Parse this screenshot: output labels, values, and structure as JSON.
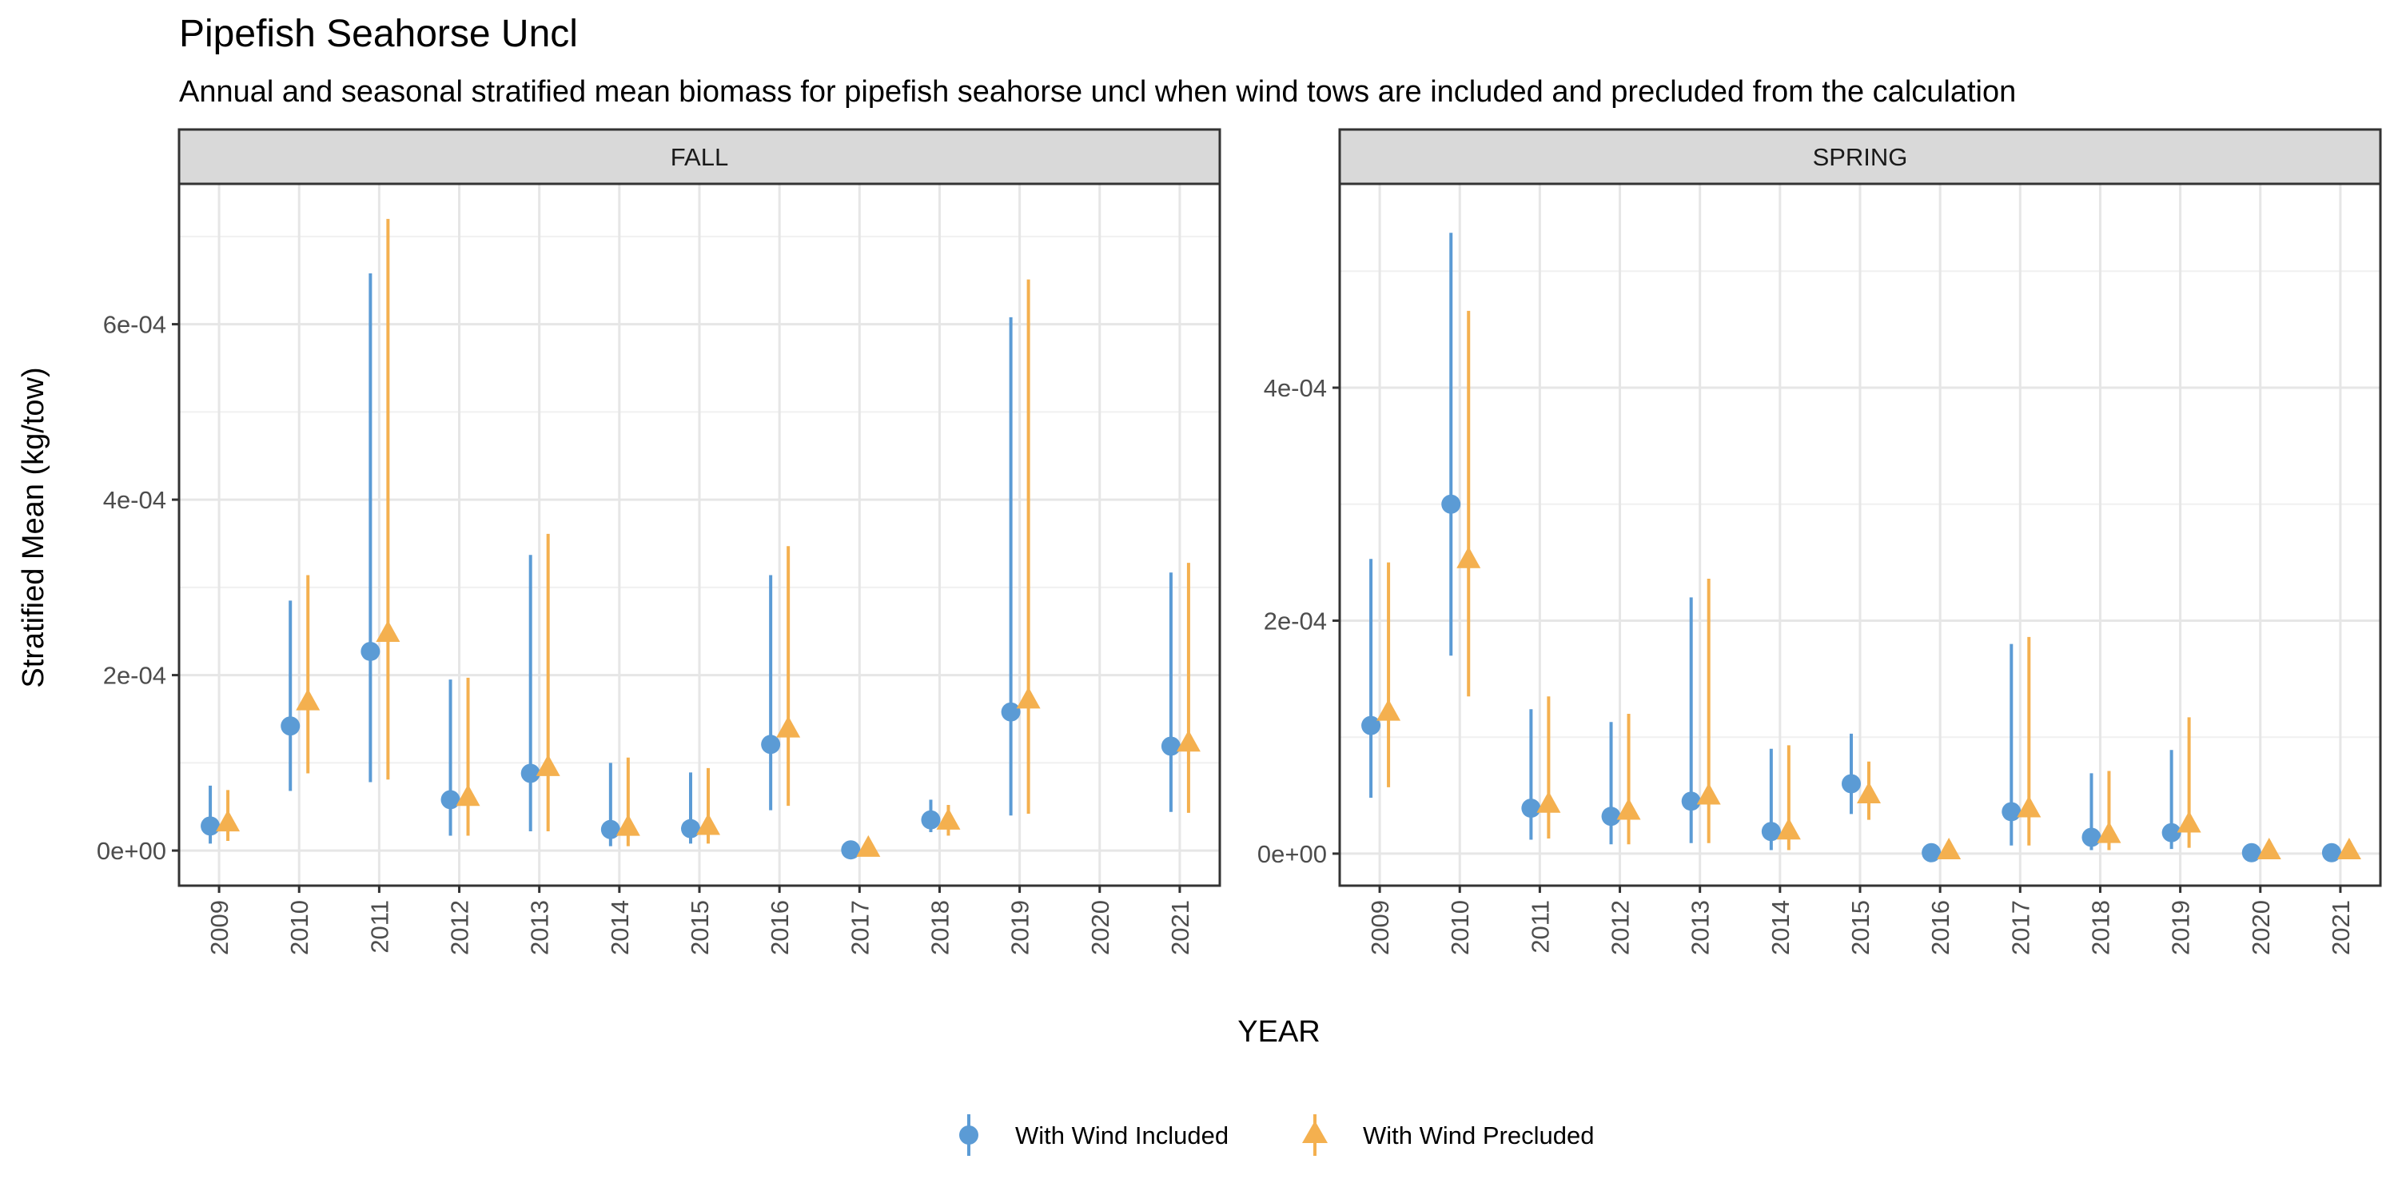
{
  "chart_data": {
    "type": "scatter",
    "title": "Pipefish Seahorse Uncl",
    "subtitle": "Annual and seasonal stratified mean biomass for pipefish seahorse uncl when wind tows are included and precluded from the calculation",
    "xlabel": "YEAR",
    "ylabel": "Stratified Mean (kg/tow)",
    "legend_position": "bottom",
    "grid": true,
    "series_styles": [
      {
        "name": "With Wind Included",
        "color": "#5B9BD5",
        "marker": "circle"
      },
      {
        "name": "With Wind Precluded",
        "color": "#F4B04F",
        "marker": "triangle"
      }
    ],
    "panels": [
      {
        "label": "FALL",
        "ylim": [
          -4e-05,
          0.00076
        ],
        "y_ticks": [
          0,
          0.0002,
          0.0004,
          0.0006
        ],
        "y_tick_labels": [
          "0e+00",
          "2e-04",
          "4e-04",
          "6e-04"
        ],
        "categories": [
          "2009",
          "2010",
          "2011",
          "2012",
          "2013",
          "2014",
          "2015",
          "2016",
          "2017",
          "2018",
          "2019",
          "2020",
          "2021"
        ],
        "series": [
          {
            "name": "With Wind Included",
            "values": [
              2.8e-05,
              0.000142,
              0.000227,
              5.8e-05,
              8.8e-05,
              2.4e-05,
              2.5e-05,
              0.000121,
              8e-07,
              3.5e-05,
              0.000158,
              null,
              0.000119
            ],
            "lower": [
              8e-06,
              6.8e-05,
              7.8e-05,
              1.7e-05,
              2.2e-05,
              5e-06,
              8e-06,
              4.6e-05,
              0.0,
              2.1e-05,
              4e-05,
              null,
              4.4e-05
            ],
            "upper": [
              7.4e-05,
              0.000285,
              0.000658,
              0.000195,
              0.000337,
              0.0001,
              8.9e-05,
              0.000314,
              2e-06,
              5.8e-05,
              0.000608,
              null,
              0.000317
            ]
          },
          {
            "name": "With Wind Precluded",
            "values": [
              3.1e-05,
              0.000169,
              0.000247,
              6e-05,
              9.4e-05,
              2.6e-05,
              2.7e-05,
              0.000138,
              2e-06,
              3.3e-05,
              0.000171,
              null,
              0.000122
            ],
            "lower": [
              1.1e-05,
              8.8e-05,
              8.1e-05,
              1.7e-05,
              2.2e-05,
              5e-06,
              8e-06,
              5.1e-05,
              0.0,
              1.7e-05,
              4.2e-05,
              null,
              4.3e-05
            ],
            "upper": [
              6.9e-05,
              0.000314,
              0.00072,
              0.000197,
              0.000361,
              0.000106,
              9.4e-05,
              0.000347,
              4e-06,
              5.2e-05,
              0.000651,
              null,
              0.000328
            ]
          }
        ]
      },
      {
        "label": "SPRING",
        "ylim": [
          -2.75e-05,
          0.000575
        ],
        "y_ticks": [
          0,
          0.0002,
          0.0004
        ],
        "y_tick_labels": [
          "0e+00",
          "2e-04",
          "4e-04"
        ],
        "categories": [
          "2009",
          "2010",
          "2011",
          "2012",
          "2013",
          "2014",
          "2015",
          "2016",
          "2017",
          "2018",
          "2019",
          "2020",
          "2021"
        ],
        "series": [
          {
            "name": "With Wind Included",
            "values": [
              0.00011,
              0.0003,
              3.9e-05,
              3.2e-05,
              4.5e-05,
              1.9e-05,
              6e-05,
              8e-07,
              3.6e-05,
              1.4e-05,
              1.8e-05,
              8e-07,
              8e-07
            ],
            "lower": [
              4.8e-05,
              0.00017,
              1.2e-05,
              8e-06,
              9e-06,
              3e-06,
              3.4e-05,
              0.0,
              7e-06,
              3e-06,
              4e-06,
              0.0,
              0.0
            ],
            "upper": [
              0.000253,
              0.000533,
              0.000124,
              0.000113,
              0.00022,
              9e-05,
              0.000103,
              2e-06,
              0.00018,
              6.9e-05,
              8.9e-05,
              2e-06,
              2e-06
            ]
          },
          {
            "name": "With Wind Precluded",
            "values": [
              0.000121,
              0.000252,
              4.2e-05,
              3.6e-05,
              4.9e-05,
              1.9e-05,
              5e-05,
              2e-06,
              3.8e-05,
              1.6e-05,
              2.5e-05,
              2e-06,
              2e-06
            ],
            "lower": [
              5.7e-05,
              0.000135,
              1.3e-05,
              8e-06,
              9e-06,
              3e-06,
              2.9e-05,
              0.0,
              7e-06,
              3e-06,
              5e-06,
              0.0,
              0.0
            ],
            "upper": [
              0.00025,
              0.000466,
              0.000135,
              0.00012,
              0.000236,
              9.3e-05,
              7.9e-05,
              4e-06,
              0.000186,
              7.1e-05,
              0.000117,
              4e-06,
              4e-06
            ]
          }
        ]
      }
    ]
  }
}
